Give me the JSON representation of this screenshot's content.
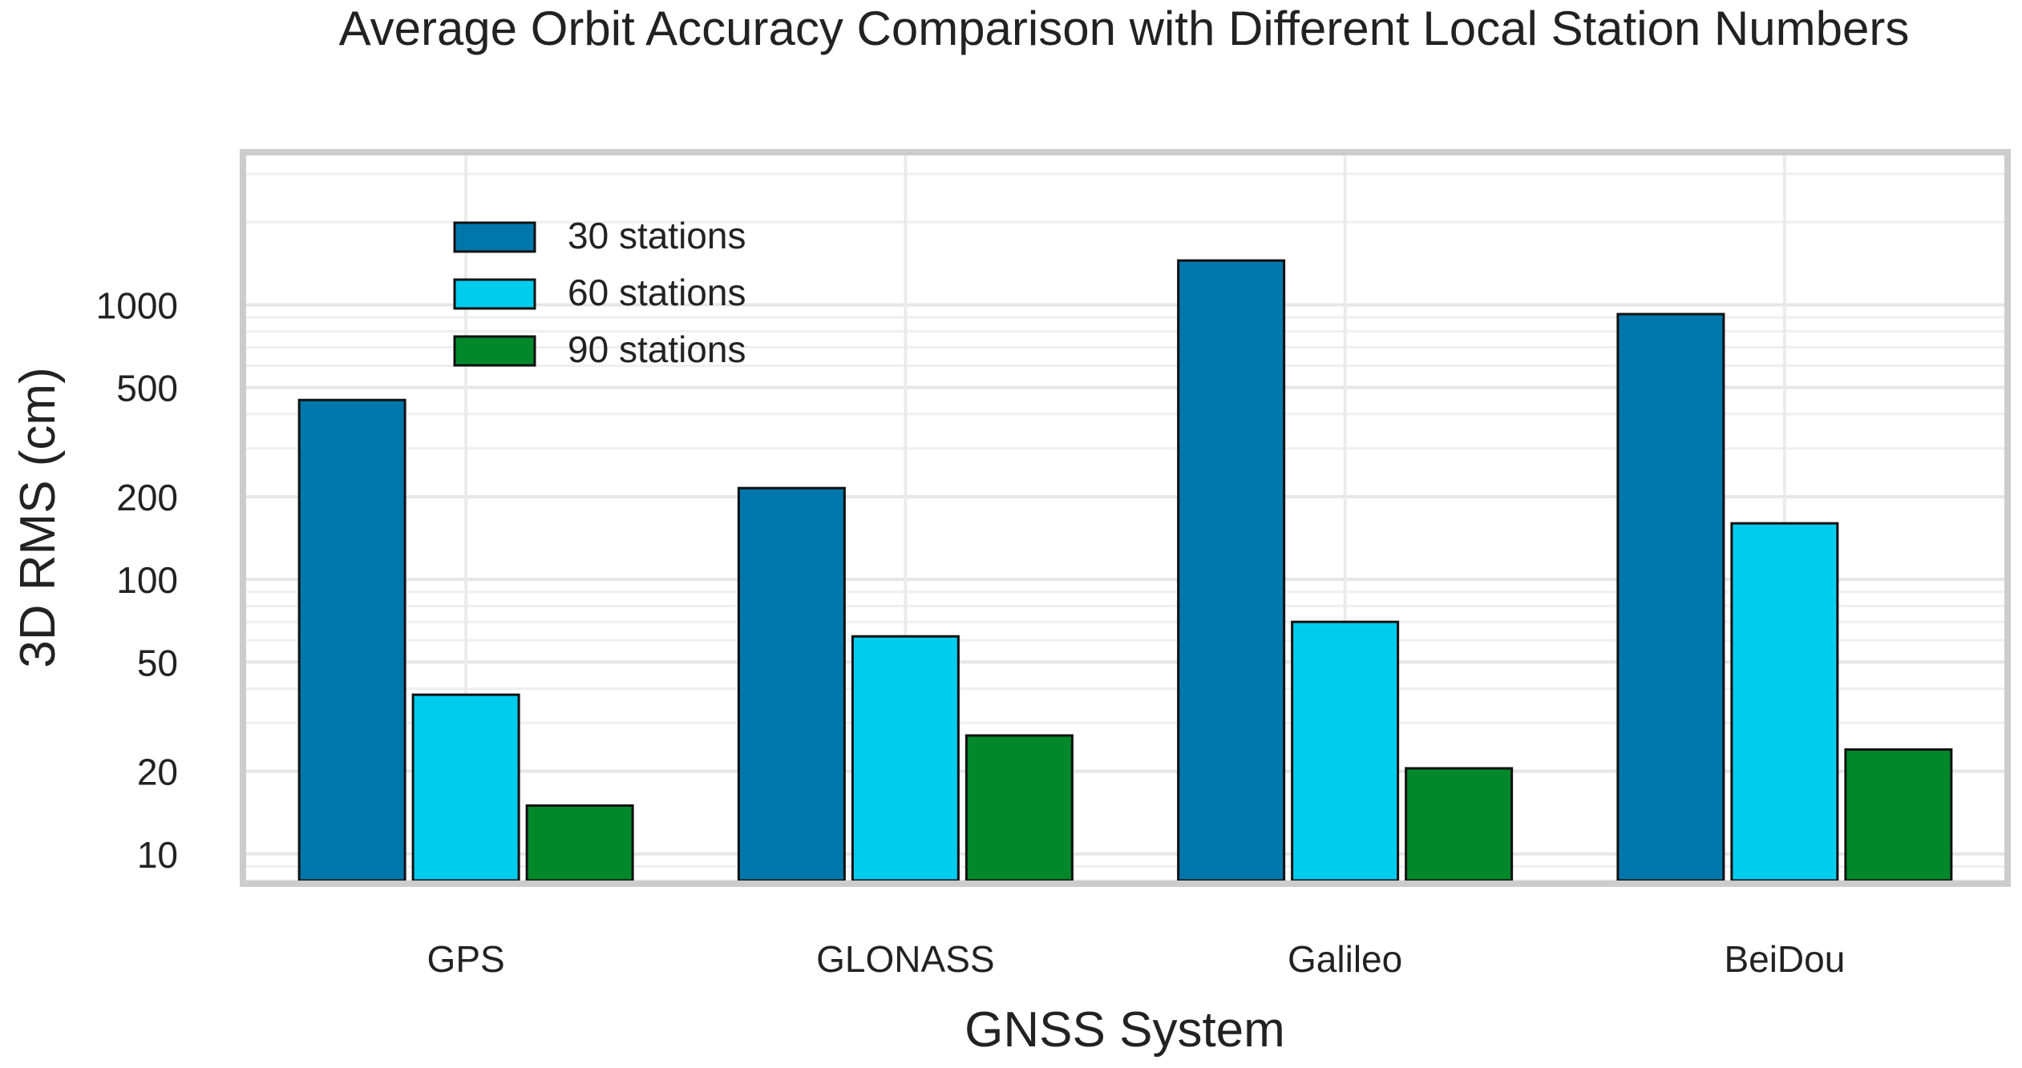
{
  "chart_data": {
    "type": "bar",
    "title": "Average Orbit Accuracy Comparison with Different Local Station Numbers",
    "xlabel": "GNSS System",
    "ylabel": "3D RMS (cm)",
    "yscale": "log",
    "ylim": [
      8,
      3500
    ],
    "yticks": [
      10,
      20,
      50,
      100,
      200,
      500,
      1000
    ],
    "ytick_labels": [
      "10",
      "20",
      "50",
      "100",
      "200",
      "500",
      "1000"
    ],
    "categories": [
      "GPS",
      "GLONASS",
      "Galileo",
      "BeiDou"
    ],
    "series": [
      {
        "name": "30 stations",
        "color": "#0077AB",
        "values": [
          450,
          215,
          1450,
          925
        ]
      },
      {
        "name": "60 stations",
        "color": "#00CCEE",
        "values": [
          38,
          62,
          70,
          160
        ]
      },
      {
        "name": "90 stations",
        "color": "#00882B",
        "values": [
          15,
          27,
          20.5,
          24
        ]
      }
    ],
    "grid": true,
    "legend_position": "top-left"
  }
}
